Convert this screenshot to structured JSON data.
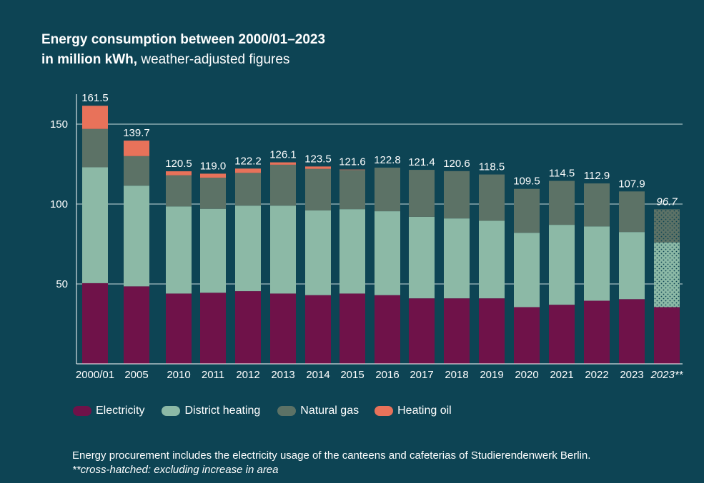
{
  "title": {
    "line1": "Energy consumption between 2000/01–2023",
    "line2_bold": "in million kWh,",
    "line2_normal": " weather-adjusted figures"
  },
  "colors": {
    "background": "#0d4454",
    "electricity": "#6f1249",
    "district_heating": "#8cb9a6",
    "natural_gas": "#5c7266",
    "heating_oil": "#e8725a"
  },
  "chart_data": {
    "type": "bar",
    "stacked": true,
    "title": "Energy consumption between 2000/01–2023 in million kWh, weather-adjusted figures",
    "xlabel": "",
    "ylabel": "",
    "ylim": [
      0,
      170
    ],
    "yticks": [
      50,
      100,
      150
    ],
    "categories": [
      "2000/01",
      "2005",
      "2010",
      "2011",
      "2012",
      "2013",
      "2014",
      "2015",
      "2016",
      "2017",
      "2018",
      "2019",
      "2020",
      "2021",
      "2022",
      "2023",
      "2023**"
    ],
    "series": [
      {
        "name": "Electricity",
        "values": [
          50.5,
          48.5,
          44.0,
          44.5,
          45.5,
          44.0,
          43.0,
          44.0,
          43.0,
          41.0,
          41.0,
          41.0,
          35.5,
          37.0,
          39.5,
          40.5,
          35.5
        ]
      },
      {
        "name": "District heating",
        "values": [
          72.5,
          63.0,
          54.5,
          52.5,
          53.5,
          55.0,
          53.0,
          52.8,
          52.5,
          51.0,
          50.0,
          48.5,
          46.5,
          50.0,
          46.5,
          42.0,
          40.5
        ]
      },
      {
        "name": "Natural gas",
        "values": [
          24.0,
          18.5,
          19.5,
          19.5,
          20.5,
          25.6,
          26.0,
          24.5,
          27.3,
          29.4,
          29.6,
          29.0,
          27.5,
          27.5,
          26.9,
          25.4,
          20.7
        ]
      },
      {
        "name": "Heating oil",
        "values": [
          14.5,
          9.7,
          2.5,
          2.5,
          2.7,
          1.5,
          1.5,
          0.3,
          0.0,
          0.0,
          0.0,
          0.0,
          0.0,
          0.0,
          0.0,
          0.0,
          0.0
        ]
      }
    ],
    "totals": [
      "161.5",
      "139.7",
      "120.5",
      "119.0",
      "122.2",
      "126.1",
      "123.5",
      "121.6",
      "122.8",
      "121.4",
      "120.6",
      "118.5",
      "109.5",
      "114.5",
      "112.9",
      "107.9",
      "96.7"
    ],
    "hatched_categories": [
      "2023**"
    ],
    "grid": true,
    "legend_position": "bottom-left"
  },
  "legend": [
    {
      "label": "Electricity",
      "color": "#6f1249"
    },
    {
      "label": "District heating",
      "color": "#8cb9a6"
    },
    {
      "label": "Natural gas",
      "color": "#5c7266"
    },
    {
      "label": "Heating oil",
      "color": "#e8725a"
    }
  ],
  "footnote": {
    "line1": "Energy procurement includes the electricity usage of the canteens and cafeterias of Studierendenwerk Berlin.",
    "line2": "**cross-hatched: excluding increase in area"
  }
}
